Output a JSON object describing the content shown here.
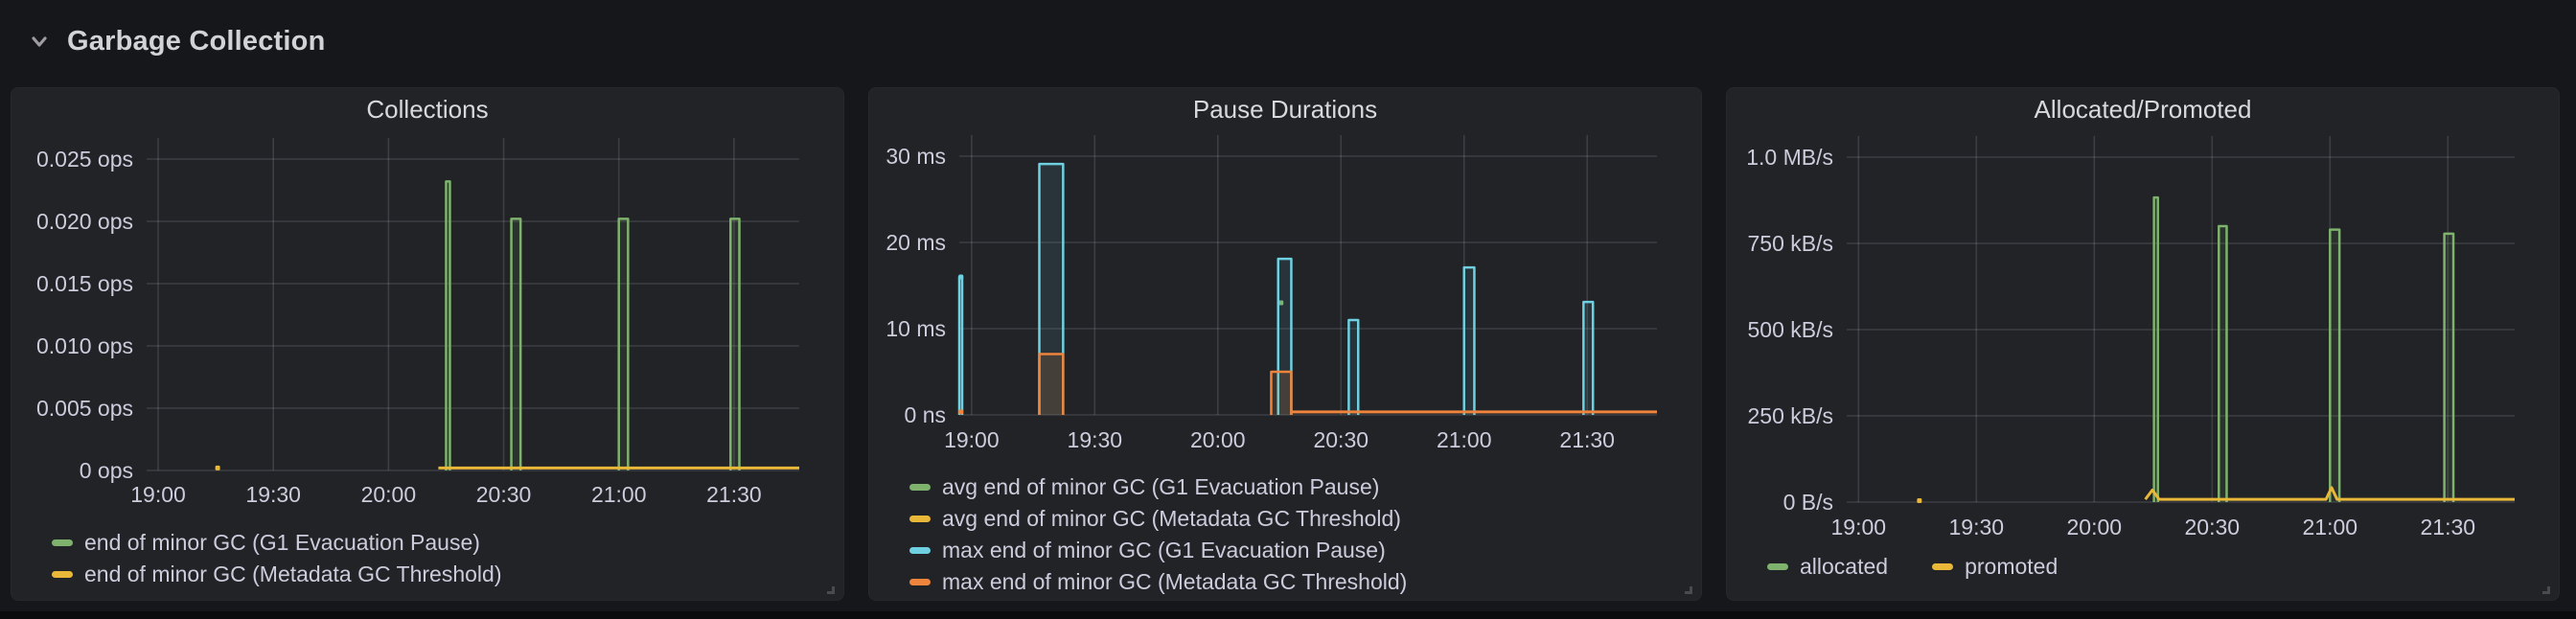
{
  "page": {
    "row_title": "Garbage Collection",
    "row_collapse_icon": "chevron-down-icon"
  },
  "colors": {
    "page_bg": "#16171a",
    "panel_bg": "#212327",
    "grid": "rgba(204,204,220,0.16)",
    "axis_text": "#ccccdc",
    "title_text": "#d8d9da",
    "green": "#7EB26D",
    "yellow": "#EAB839",
    "cyan": "#6ED0E0",
    "orange": "#EF843C"
  },
  "chart_data": [
    {
      "type": "line",
      "title": "Collections",
      "x_range": [
        "18:57",
        "21:47"
      ],
      "grid": true,
      "legend_position": "bottom-left-vertical",
      "y_ticks": [
        {
          "v": 0.025,
          "label": "0.025 ops"
        },
        {
          "v": 0.02,
          "label": "0.020 ops"
        },
        {
          "v": 0.015,
          "label": "0.015 ops"
        },
        {
          "v": 0.01,
          "label": "0.010 ops"
        },
        {
          "v": 0.005,
          "label": "0.005 ops"
        },
        {
          "v": 0,
          "label": "0 ops"
        }
      ],
      "x_ticks": [
        {
          "t": 3,
          "label": "19:00"
        },
        {
          "t": 33,
          "label": "19:30"
        },
        {
          "t": 63,
          "label": "20:00"
        },
        {
          "t": 93,
          "label": "20:30"
        },
        {
          "t": 123,
          "label": "21:00"
        },
        {
          "t": 153,
          "label": "21:30"
        }
      ],
      "series": [
        {
          "name": "end of minor GC (G1 Evacuation Pause)",
          "color": "#7EB26D",
          "fill_opacity": 0.1,
          "bars": [
            {
              "t0": 78.0,
              "t1": 79.0,
              "v": 0.0232
            },
            {
              "t0": 95.0,
              "t1": 97.4,
              "v": 0.0202
            },
            {
              "t0": 123.0,
              "t1": 125.4,
              "v": 0.0202
            },
            {
              "t0": 152.1,
              "t1": 154.4,
              "v": 0.0202
            }
          ],
          "line": [],
          "dots": []
        },
        {
          "name": "end of minor GC (Metadata GC Threshold)",
          "color": "#EAB839",
          "fill_opacity": 0,
          "bars": [],
          "line": [
            [
              76,
              0.0002
            ],
            [
              170,
              0.0002
            ]
          ],
          "dots": [
            [
              18.5,
              0.0002
            ]
          ]
        }
      ]
    },
    {
      "type": "line",
      "title": "Pause Durations",
      "x_range": [
        "18:57",
        "21:47"
      ],
      "grid": true,
      "legend_position": "bottom-left-vertical",
      "y_ticks": [
        {
          "v": 30,
          "label": "30 ms"
        },
        {
          "v": 20,
          "label": "20 ms"
        },
        {
          "v": 10,
          "label": "10 ms"
        },
        {
          "v": 0,
          "label": "0 ns"
        }
      ],
      "x_ticks": [
        {
          "t": 3,
          "label": "19:00"
        },
        {
          "t": 33,
          "label": "19:30"
        },
        {
          "t": 63,
          "label": "20:00"
        },
        {
          "t": 93,
          "label": "20:30"
        },
        {
          "t": 123,
          "label": "21:00"
        },
        {
          "t": 153,
          "label": "21:30"
        }
      ],
      "series": [
        {
          "name": "avg end of minor GC (G1 Evacuation Pause)",
          "color": "#7EB26D",
          "fill_opacity": 0,
          "bars": [],
          "line": [],
          "dots": [
            [
              78.4,
              13
            ]
          ]
        },
        {
          "name": "avg end of minor GC (Metadata GC Threshold)",
          "color": "#EAB839",
          "fill_opacity": 0,
          "bars": [],
          "line": [],
          "dots": []
        },
        {
          "name": "max end of minor GC (G1 Evacuation Pause)",
          "color": "#6ED0E0",
          "fill_opacity": 0.1,
          "bars": [
            {
              "t0": 0,
              "t1": 0.7,
              "v": 16
            },
            {
              "t0": 19.5,
              "t1": 25.3,
              "v": 29.1
            },
            {
              "t0": 77.7,
              "t1": 80.9,
              "v": 18.1
            },
            {
              "t0": 94.9,
              "t1": 97.2,
              "v": 11
            },
            {
              "t0": 123.0,
              "t1": 125.5,
              "v": 17.1
            },
            {
              "t0": 152.1,
              "t1": 154.4,
              "v": 13.1
            }
          ],
          "line": [],
          "dots": [
            [
              0.4,
              16
            ]
          ]
        },
        {
          "name": "max end of minor GC (Metadata GC Threshold)",
          "color": "#EF843C",
          "fill_opacity": 0.14,
          "bars": [
            {
              "t0": 19.5,
              "t1": 25.3,
              "v": 7.05
            },
            {
              "t0": 76.0,
              "t1": 80.9,
              "v": 5.0
            }
          ],
          "line": [
            [
              80.9,
              0.35
            ],
            [
              170,
              0.35
            ]
          ],
          "dots": [
            [
              0.4,
              0.35
            ]
          ]
        }
      ]
    },
    {
      "type": "line",
      "title": "Allocated/Promoted",
      "x_range": [
        "18:57",
        "21:47"
      ],
      "grid": true,
      "legend_position": "bottom-left-horizontal",
      "y_ticks": [
        {
          "v": 1000000,
          "label": "1.0 MB/s"
        },
        {
          "v": 750000,
          "label": "750 kB/s"
        },
        {
          "v": 500000,
          "label": "500 kB/s"
        },
        {
          "v": 250000,
          "label": "250 kB/s"
        },
        {
          "v": 0,
          "label": "0 B/s"
        }
      ],
      "x_ticks": [
        {
          "t": 3,
          "label": "19:00"
        },
        {
          "t": 33,
          "label": "19:30"
        },
        {
          "t": 63,
          "label": "20:00"
        },
        {
          "t": 93,
          "label": "20:30"
        },
        {
          "t": 123,
          "label": "21:00"
        },
        {
          "t": 153,
          "label": "21:30"
        }
      ],
      "series": [
        {
          "name": "allocated",
          "color": "#7EB26D",
          "fill_opacity": 0.1,
          "bars": [
            {
              "t0": 78.2,
              "t1": 79.2,
              "v": 883000
            },
            {
              "t0": 94.7,
              "t1": 96.7,
              "v": 800000
            },
            {
              "t0": 123.0,
              "t1": 125.4,
              "v": 790000
            },
            {
              "t0": 152.1,
              "t1": 154.4,
              "v": 778000
            }
          ],
          "line": [],
          "dots": []
        },
        {
          "name": "promoted",
          "color": "#EAB839",
          "fill_opacity": 0,
          "bars": [],
          "line": [
            [
              76,
              8000
            ],
            [
              77.8,
              35000
            ],
            [
              79.5,
              8000
            ],
            [
              122,
              8000
            ],
            [
              123.4,
              42000
            ],
            [
              124.8,
              8000
            ],
            [
              170,
              8000
            ]
          ],
          "dots": [
            [
              18.5,
              4000
            ]
          ]
        }
      ]
    }
  ]
}
